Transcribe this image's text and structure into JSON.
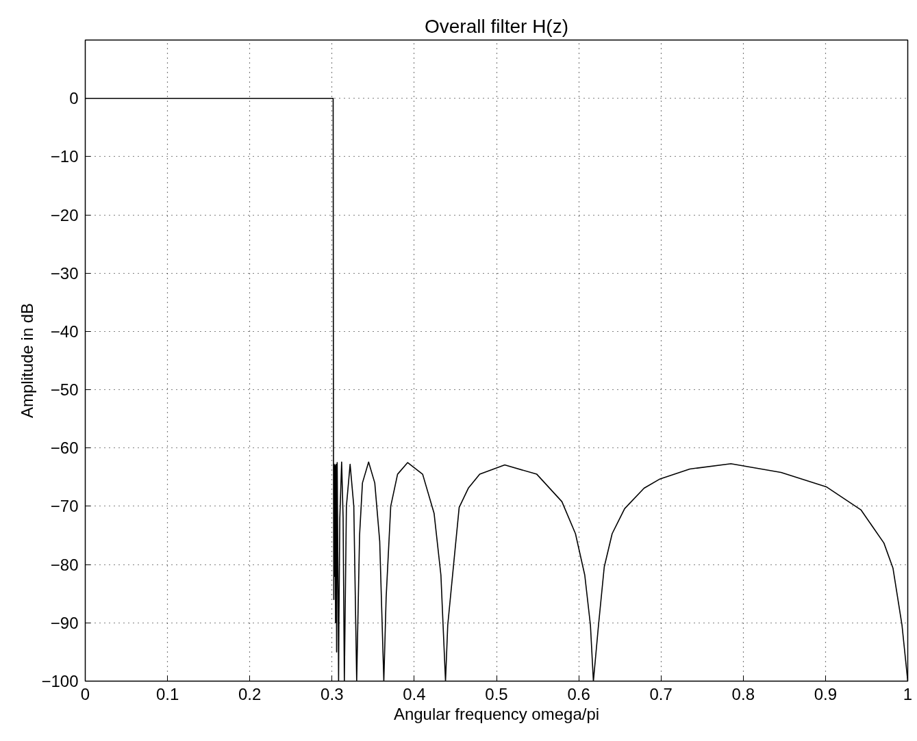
{
  "chart_data": {
    "type": "line",
    "title": "Overall filter H(z)",
    "xlabel": "Angular frequency omega/pi",
    "ylabel": "Amplitude in dB",
    "xlim": [
      0,
      1
    ],
    "ylim": [
      -100,
      10
    ],
    "xticks": [
      0,
      0.1,
      0.2,
      0.3,
      0.4,
      0.5,
      0.6,
      0.7,
      0.8,
      0.9,
      1
    ],
    "yticks": [
      -100,
      -90,
      -80,
      -70,
      -60,
      -50,
      -40,
      -30,
      -20,
      -10,
      0
    ],
    "grid": true,
    "line_style": "solid",
    "series": [
      {
        "color": "#000000",
        "x": [
          0,
          0.3014,
          0.3018,
          0.3022,
          0.3027,
          0.3032,
          0.3037,
          0.3043,
          0.3049,
          0.3056,
          0.3063,
          0.3076,
          0.308,
          0.3084,
          0.3095,
          0.3117,
          0.3135,
          0.315,
          0.3175,
          0.322,
          0.3265,
          0.33,
          0.3335,
          0.337,
          0.3445,
          0.352,
          0.358,
          0.363,
          0.3658,
          0.3714,
          0.3797,
          0.392,
          0.4102,
          0.4241,
          0.4324,
          0.438,
          0.4407,
          0.4477,
          0.4546,
          0.4657,
          0.4796,
          0.51,
          0.549,
          0.5795,
          0.596,
          0.6073,
          0.6142,
          0.6178,
          0.624,
          0.631,
          0.6406,
          0.6558,
          0.6794,
          0.6989,
          0.735,
          0.785,
          0.846,
          0.9015,
          0.943,
          0.971,
          0.982,
          0.993,
          1.0
        ],
        "values": [
          0,
          0,
          -62.6,
          -86,
          -62.8,
          -82,
          -63,
          -90,
          -62.8,
          -95,
          -62.5,
          -90,
          -100,
          -90,
          -72,
          -62.4,
          -72,
          -100,
          -70,
          -62.8,
          -70,
          -100,
          -75,
          -66,
          -62.4,
          -66,
          -76,
          -100,
          -85.7,
          -70.0,
          -64.5,
          -62.5,
          -64.5,
          -71.2,
          -81.8,
          -100,
          -90.4,
          -80.2,
          -70.2,
          -66.9,
          -64.5,
          -62.9,
          -64.5,
          -69.2,
          -74.7,
          -81.8,
          -90.4,
          -100,
          -90.4,
          -80.4,
          -74.7,
          -70.4,
          -66.9,
          -65.3,
          -63.6,
          -62.7,
          -64.2,
          -66.7,
          -70.6,
          -76.3,
          -80.6,
          -90.4,
          -100
        ]
      }
    ]
  }
}
